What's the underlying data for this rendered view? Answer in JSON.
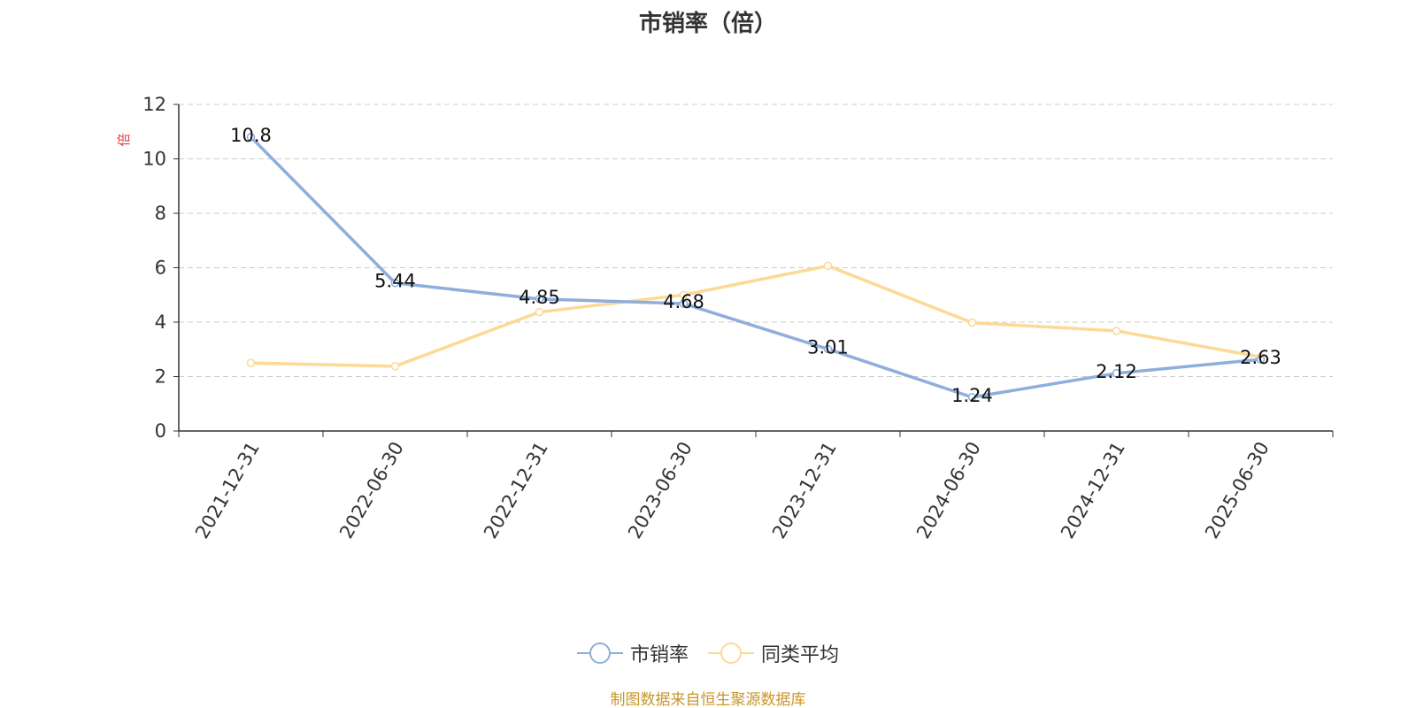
{
  "chart_data": {
    "type": "line",
    "title": "市销率（倍）",
    "ylabel": "倍",
    "xlabel": "",
    "categories": [
      "2021-12-31",
      "2022-06-30",
      "2022-12-31",
      "2023-06-30",
      "2023-12-31",
      "2024-06-30",
      "2024-12-31",
      "2025-06-30"
    ],
    "ylim": [
      0,
      12
    ],
    "yticks": [
      0,
      2,
      4,
      6,
      8,
      10,
      12
    ],
    "grid": true,
    "legend_position": "bottom",
    "series": [
      {
        "name": "市销率",
        "color": "#8eaedc",
        "values": [
          10.8,
          5.44,
          4.85,
          4.68,
          3.01,
          1.24,
          2.12,
          2.63
        ],
        "data_labels": [
          "10.8",
          "5.44",
          "4.85",
          "4.68",
          "3.01",
          "1.24",
          "2.12",
          "2.63"
        ]
      },
      {
        "name": "同类平均",
        "color": "#fcd995",
        "values": [
          2.5,
          2.38,
          4.37,
          5.0,
          6.07,
          3.98,
          3.68,
          2.72
        ]
      }
    ]
  },
  "source_note": "制图数据来自恒生聚源数据库"
}
